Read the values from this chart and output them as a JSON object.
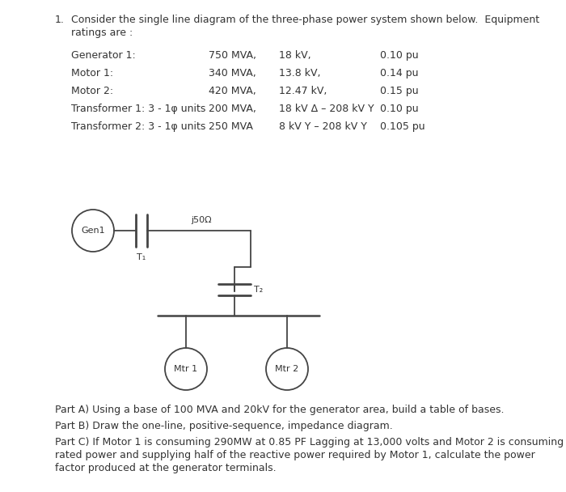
{
  "title_number": "1.",
  "title_text": "Consider the single line diagram of the three-phase power system shown below.  Equipment",
  "title_text2": "ratings are :",
  "equipment": [
    {
      "name": "Generator 1:",
      "mva": "750 MVA,",
      "kv": "18 kV,",
      "pu": "0.10 pu"
    },
    {
      "name": "Motor 1:",
      "mva": "340 MVA,",
      "kv": "13.8 kV,",
      "pu": "0.14 pu"
    },
    {
      "name": "Motor 2:",
      "mva": "420 MVA,",
      "kv": "12.47 kV,",
      "pu": "0.15 pu"
    },
    {
      "name": "Transformer 1: 3 - 1φ units",
      "mva": "200 MVA,",
      "kv": "18 kV Δ – 208 kV Y",
      "pu": "0.10 pu"
    },
    {
      "name": "Transformer 2: 3 - 1φ units",
      "mva": "250 MVA",
      "kv": "8 kV Y – 208 kV Y",
      "pu": "0.105 pu"
    }
  ],
  "partA": "Part A) Using a base of 100 MVA and 20kV for the generator area, build a table of bases.",
  "partB": "Part B) Draw the one-line, positive-sequence, impedance diagram.",
  "partC": "Part C) If Motor 1 is consuming 290MW at 0.85 PF Lagging at 13,000 volts and Motor 2 is consuming",
  "partC2": "rated power and supplying half of the reactive power required by Motor 1, calculate the power",
  "partC3": "factor produced at the generator terminals.",
  "text_color": "#333333",
  "line_color": "#444444",
  "font_size": 9.0,
  "font_size_small": 8.0
}
